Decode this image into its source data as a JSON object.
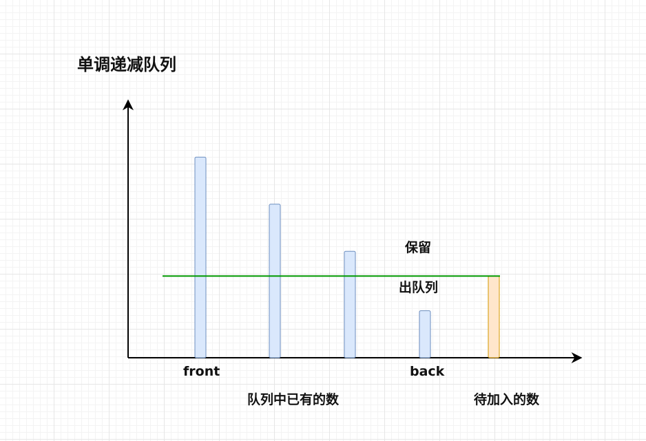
{
  "title": "单调递减队列",
  "labels": {
    "keep": "保留",
    "pop": "出队列",
    "front": "front",
    "back": "back",
    "existing": "队列中已有的数",
    "pending": "待加入的数"
  },
  "colors": {
    "queue_fill": "#dae8fc",
    "queue_stroke": "#6c8ebf",
    "pending_fill": "#ffe6cc",
    "pending_stroke": "#d79b00",
    "threshold_line": "#009900",
    "axis": "#000000"
  },
  "chart_data": {
    "type": "bar",
    "queue_values": [
      8.1,
      6.2,
      4.3,
      1.9
    ],
    "pending_value": 3.3,
    "ylim": [
      0,
      10
    ]
  }
}
